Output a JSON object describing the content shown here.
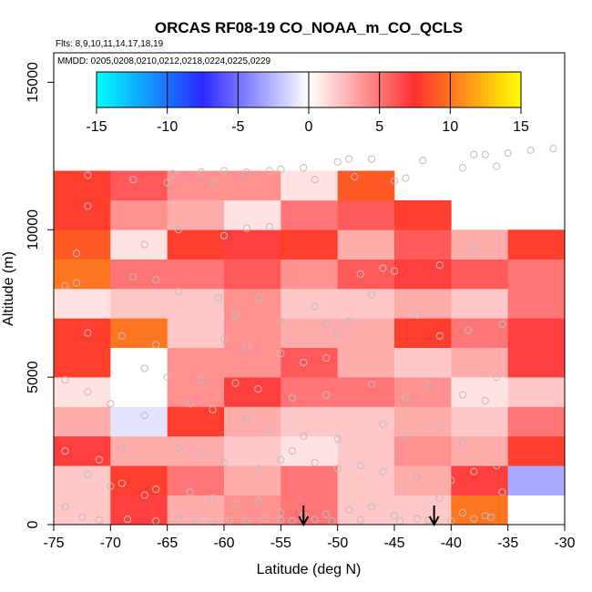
{
  "chart_data": {
    "type": "heatmap",
    "title": "ORCAS RF08-19 CO_NOAA_m_CO_QCLS",
    "flights_note": "Flts: 8,9,10,11,14,17,18,19",
    "dates_note": "MMDD: 0205,0208,0210,0212,0218,0224,0225,0229",
    "xlabel": "Latitude (deg N)",
    "ylabel": "Altitude (m)",
    "xlim": [
      -75,
      -30
    ],
    "ylim": [
      0,
      16000
    ],
    "xticks": [
      -75,
      -70,
      -65,
      -60,
      -55,
      -50,
      -45,
      -40,
      -35,
      -30
    ],
    "yticks": [
      0,
      5000,
      10000,
      15000
    ],
    "colorbar": {
      "range": [
        -15,
        15
      ],
      "ticks": [
        -15,
        -10,
        -5,
        0,
        5,
        10,
        15
      ],
      "colors": [
        "#00ffff",
        "#2a2aff",
        "#ffffff",
        "#ff3030",
        "#ffff00"
      ]
    },
    "cell_size": {
      "lat": 5,
      "alt": 1000
    },
    "rows": [
      {
        "alt_bottom": 0,
        "values": [
          2,
          7,
          3,
          4,
          5,
          2,
          2,
          10,
          0
        ]
      },
      {
        "alt_bottom": 1000,
        "values": [
          2,
          8,
          5,
          3,
          5,
          2,
          3,
          7,
          -3
        ]
      },
      {
        "alt_bottom": 2000,
        "values": [
          7,
          3,
          3,
          2,
          1,
          2,
          4,
          3,
          8
        ]
      },
      {
        "alt_bottom": 3000,
        "values": [
          3,
          -1,
          8,
          3,
          2,
          2,
          3,
          2,
          5
        ]
      },
      {
        "alt_bottom": 4000,
        "values": [
          1,
          0,
          4,
          7,
          5,
          5,
          4,
          1,
          2
        ]
      },
      {
        "alt_bottom": 5000,
        "values": [
          8,
          0,
          4,
          4,
          6,
          3,
          2,
          3,
          7
        ]
      },
      {
        "alt_bottom": 6000,
        "values": [
          8,
          10,
          2,
          4,
          3,
          3,
          8,
          5,
          7
        ]
      },
      {
        "alt_bottom": 7000,
        "values": [
          1,
          2,
          2,
          4,
          2,
          2,
          3,
          2,
          5
        ]
      },
      {
        "alt_bottom": 8000,
        "values": [
          10,
          5,
          5,
          6,
          4,
          6,
          7,
          6,
          5
        ]
      },
      {
        "alt_bottom": 9000,
        "values": [
          9,
          1,
          8,
          7,
          8,
          3,
          6,
          3,
          8
        ]
      },
      {
        "alt_bottom": 10000,
        "values": [
          8,
          4,
          3,
          1,
          5,
          6,
          8,
          null,
          null
        ]
      },
      {
        "alt_bottom": 11000,
        "values": [
          8,
          6,
          4,
          4,
          1,
          9,
          null,
          null,
          null
        ]
      }
    ],
    "arrows_lat": [
      -53,
      -41.5
    ],
    "sample_points": [
      [
        -72,
        11850
      ],
      [
        -68,
        11700
      ],
      [
        -64.5,
        11900
      ],
      [
        -62,
        11950
      ],
      [
        -60,
        12000
      ],
      [
        -58,
        11950
      ],
      [
        -56,
        12000
      ],
      [
        -55,
        12050
      ],
      [
        -53,
        12100
      ],
      [
        -52,
        11700
      ],
      [
        -50,
        12300
      ],
      [
        -49,
        12400
      ],
      [
        -47,
        12400
      ],
      [
        -48.5,
        11800
      ],
      [
        -45,
        11650
      ],
      [
        -44,
        11750
      ],
      [
        -42.5,
        12350
      ],
      [
        -39,
        12100
      ],
      [
        -37,
        12550
      ],
      [
        -35,
        12600
      ],
      [
        -33,
        12700
      ],
      [
        -31,
        12750
      ],
      [
        -38,
        12550
      ],
      [
        -36,
        12150
      ],
      [
        -65,
        11600
      ],
      [
        -61,
        11600
      ],
      [
        -58,
        10050
      ],
      [
        -56,
        10100
      ],
      [
        -60,
        9800
      ],
      [
        -64,
        10000
      ],
      [
        -67,
        9500
      ],
      [
        -72,
        10800
      ],
      [
        -73,
        9200
      ],
      [
        -46,
        8700
      ],
      [
        -45,
        8600
      ],
      [
        -48,
        8500
      ],
      [
        -41,
        8800
      ],
      [
        -38,
        9350
      ],
      [
        -74,
        8100
      ],
      [
        -73,
        8200
      ],
      [
        -68,
        8400
      ],
      [
        -66,
        8300
      ],
      [
        -64,
        7900
      ],
      [
        -60.5,
        7700
      ],
      [
        -57,
        7700
      ],
      [
        -59,
        7100
      ],
      [
        -55,
        6900
      ],
      [
        -52,
        7400
      ],
      [
        -51,
        6800
      ],
      [
        -49,
        6900
      ],
      [
        -50,
        6500
      ],
      [
        -47,
        7800
      ],
      [
        -43,
        7100
      ],
      [
        -41,
        6400
      ],
      [
        -38.5,
        6600
      ],
      [
        -35.5,
        6800
      ],
      [
        -72,
        6500
      ],
      [
        -69,
        6400
      ],
      [
        -66,
        6100
      ],
      [
        -60,
        6300
      ],
      [
        -58,
        6000
      ],
      [
        -55,
        5800
      ],
      [
        -53,
        5500
      ],
      [
        -51,
        5650
      ],
      [
        -67,
        5300
      ],
      [
        -65,
        5000
      ],
      [
        -62,
        4900
      ],
      [
        -59,
        4800
      ],
      [
        -57,
        4600
      ],
      [
        -54,
        4300
      ],
      [
        -51,
        4400
      ],
      [
        -47,
        4750
      ],
      [
        -44,
        4300
      ],
      [
        -42,
        4700
      ],
      [
        -39,
        4400
      ],
      [
        -36,
        5000
      ],
      [
        -37,
        4200
      ],
      [
        -74,
        4900
      ],
      [
        -72,
        4500
      ],
      [
        -70,
        4100
      ],
      [
        -63,
        4100
      ],
      [
        -61,
        3900
      ],
      [
        -58,
        3600
      ],
      [
        -56,
        3200
      ],
      [
        -53,
        3000
      ],
      [
        -50,
        2900
      ],
      [
        -46,
        3400
      ],
      [
        -44,
        3000
      ],
      [
        -41,
        3300
      ],
      [
        -39,
        2800
      ],
      [
        -67,
        3700
      ],
      [
        -69,
        2600
      ],
      [
        -74,
        2500
      ],
      [
        -71,
        2200
      ],
      [
        -64,
        2600
      ],
      [
        -62,
        2400
      ],
      [
        -60,
        2100
      ],
      [
        -57,
        1900
      ],
      [
        -55,
        2200
      ],
      [
        -54,
        2500
      ],
      [
        -52,
        2100
      ],
      [
        -50,
        1900
      ],
      [
        -48,
        2000
      ],
      [
        -46,
        1800
      ],
      [
        -43,
        1600
      ],
      [
        -40,
        1500
      ],
      [
        -38,
        1800
      ],
      [
        -36,
        2000
      ],
      [
        -72,
        1700
      ],
      [
        -70,
        1300
      ],
      [
        -69,
        1400
      ],
      [
        -67,
        1000
      ],
      [
        -66,
        1200
      ],
      [
        -63,
        1100
      ],
      [
        -61,
        900
      ],
      [
        -59,
        700
      ],
      [
        -57,
        800
      ],
      [
        -55,
        400
      ],
      [
        -53,
        300
      ],
      [
        -51,
        350
      ],
      [
        -49,
        500
      ],
      [
        -47,
        600
      ],
      [
        -45,
        300
      ],
      [
        -43,
        200
      ],
      [
        -41,
        900
      ],
      [
        -39,
        400
      ],
      [
        -37,
        300
      ],
      [
        -35.5,
        1100
      ],
      [
        -74,
        600
      ],
      [
        -72.5,
        250
      ],
      [
        -71,
        150
      ],
      [
        -68.5,
        180
      ],
      [
        -66,
        120
      ],
      [
        -64,
        200
      ],
      [
        -62.5,
        150
      ],
      [
        -61,
        100
      ],
      [
        -59.5,
        150
      ],
      [
        -58,
        120
      ],
      [
        -56.5,
        200
      ],
      [
        -55,
        150
      ],
      [
        -54,
        130
      ],
      [
        -52,
        180
      ],
      [
        -50.5,
        120
      ],
      [
        -48,
        160
      ],
      [
        -44.5,
        120
      ],
      [
        -42,
        150
      ],
      [
        -40,
        120
      ],
      [
        -38,
        200
      ],
      [
        -36.5,
        250
      ]
    ]
  }
}
